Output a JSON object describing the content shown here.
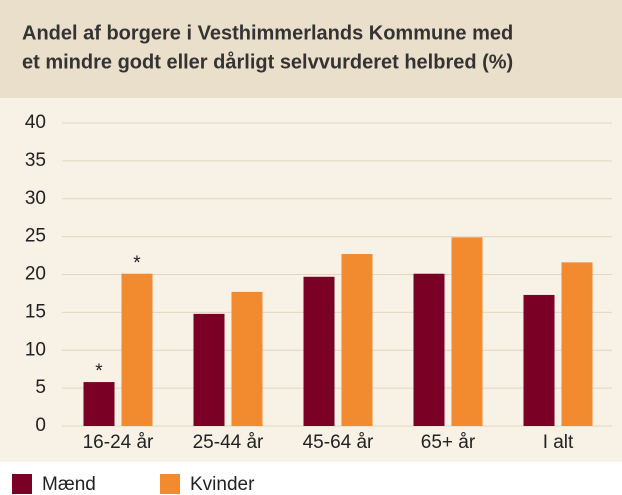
{
  "chart_data": {
    "type": "bar",
    "title": [
      "Andel af borgere i Vesthimmerlands Kommune med",
      "et mindre godt eller dårligt selvvurderet helbred (%)"
    ],
    "categories": [
      "16-24 år",
      "25-44 år",
      "45-64 år",
      "65+ år",
      "I alt"
    ],
    "series": [
      {
        "name": "Mænd",
        "color": "#7a0026",
        "values": [
          5.8,
          14.8,
          19.7,
          20.1,
          17.3
        ]
      },
      {
        "name": "Kvinder",
        "color": "#f28a30",
        "values": [
          20.1,
          17.7,
          22.7,
          24.9,
          21.6
        ]
      }
    ],
    "annotations": [
      {
        "text": "*",
        "series": 0,
        "index": 0
      },
      {
        "text": "*",
        "series": 1,
        "index": 0
      }
    ],
    "ylim": [
      0,
      40
    ],
    "yticks": [
      0,
      5,
      10,
      15,
      20,
      25,
      30,
      35,
      40
    ],
    "grid": true
  }
}
